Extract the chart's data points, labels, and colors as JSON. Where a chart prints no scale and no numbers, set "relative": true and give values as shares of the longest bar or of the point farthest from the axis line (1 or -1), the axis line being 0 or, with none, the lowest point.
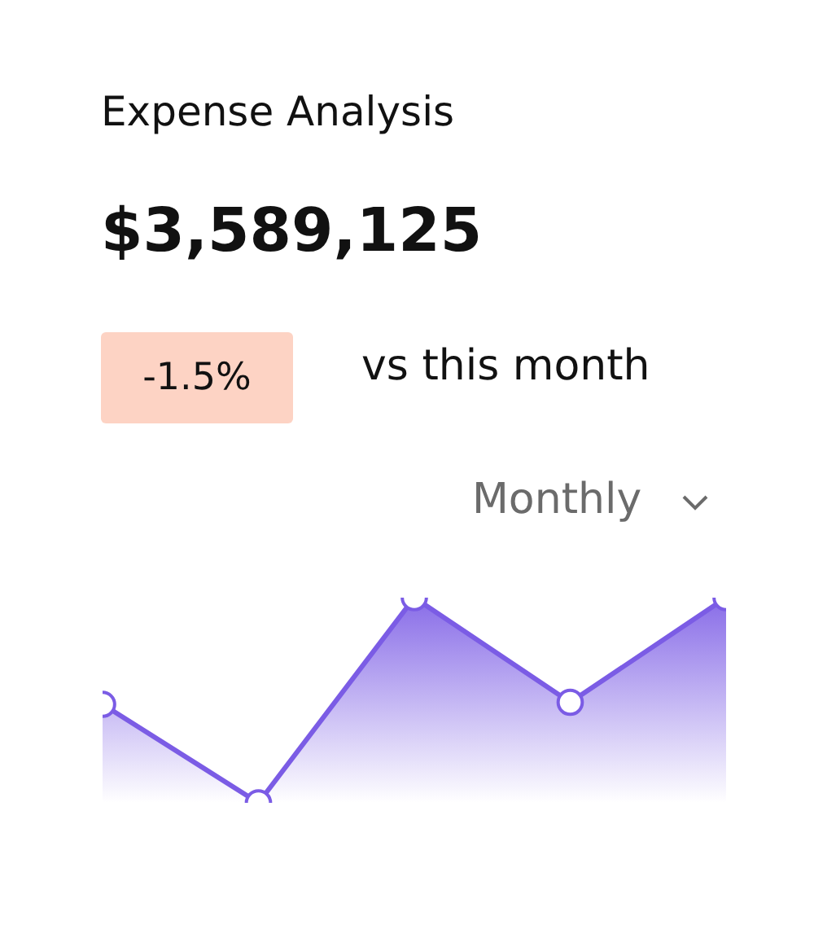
{
  "chart_data": {
    "type": "area",
    "title": "Expense Analysis",
    "subtitle": "$3,589,125",
    "annotations": [
      "-1.5%",
      "vs this month",
      "Monthly"
    ],
    "categories": [
      null,
      null,
      null,
      null,
      null
    ],
    "relative": true,
    "marker": "circle",
    "series": [
      {
        "color": "#7b5ce5",
        "values": [
          0.48,
          0,
          1,
          0.49,
          1
        ]
      }
    ]
  }
}
